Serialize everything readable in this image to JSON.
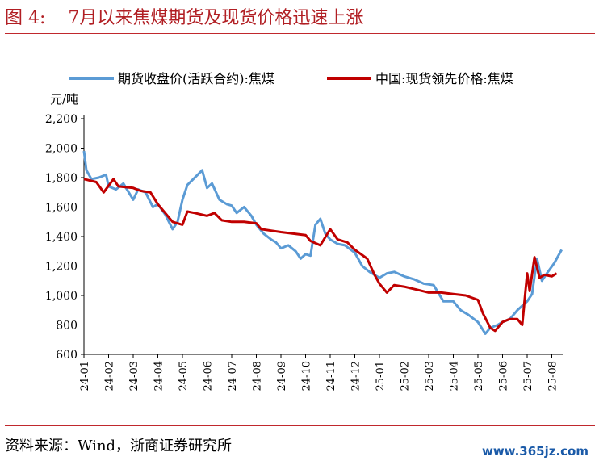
{
  "title": "图 4:    7月以来焦煤期货及现货价格迅速上涨",
  "source": "资料来源：Wind，浙商证券研究所",
  "watermark": "www.365jz.com",
  "chart_data": {
    "type": "line",
    "ylabel": "元/吨",
    "ylim": [
      600,
      2200
    ],
    "yticks": [
      "2,200",
      "2,000",
      "1,800",
      "1,600",
      "1,400",
      "1,200",
      "1,000",
      "800",
      "600"
    ],
    "ytick_values": [
      2200,
      2000,
      1800,
      1600,
      1400,
      1200,
      1000,
      800,
      600
    ],
    "categories": [
      "24-01",
      "24-02",
      "24-03",
      "24-04",
      "24-05",
      "24-06",
      "24-07",
      "24-08",
      "24-09",
      "24-10",
      "24-11",
      "24-12",
      "25-01",
      "25-02",
      "25-03",
      "25-04",
      "25-05",
      "25-06",
      "25-07",
      "25-08"
    ],
    "legend_position": "top",
    "series": [
      {
        "name": "期货收盘价(活跃合约):焦煤",
        "color": "#5b9bd5",
        "points": [
          [
            0,
            1980
          ],
          [
            0.1,
            1850
          ],
          [
            0.3,
            1790
          ],
          [
            0.6,
            1800
          ],
          [
            0.9,
            1820
          ],
          [
            1.0,
            1740
          ],
          [
            1.3,
            1720
          ],
          [
            1.6,
            1760
          ],
          [
            2.0,
            1650
          ],
          [
            2.2,
            1720
          ],
          [
            2.5,
            1700
          ],
          [
            2.8,
            1600
          ],
          [
            3.0,
            1620
          ],
          [
            3.3,
            1550
          ],
          [
            3.6,
            1450
          ],
          [
            3.8,
            1500
          ],
          [
            4.0,
            1650
          ],
          [
            4.2,
            1750
          ],
          [
            4.5,
            1800
          ],
          [
            4.8,
            1850
          ],
          [
            5.0,
            1730
          ],
          [
            5.2,
            1760
          ],
          [
            5.5,
            1650
          ],
          [
            5.8,
            1620
          ],
          [
            6.0,
            1610
          ],
          [
            6.2,
            1560
          ],
          [
            6.5,
            1600
          ],
          [
            6.8,
            1540
          ],
          [
            7.0,
            1480
          ],
          [
            7.3,
            1420
          ],
          [
            7.6,
            1380
          ],
          [
            7.8,
            1360
          ],
          [
            8.0,
            1320
          ],
          [
            8.3,
            1340
          ],
          [
            8.6,
            1300
          ],
          [
            8.8,
            1250
          ],
          [
            9.0,
            1280
          ],
          [
            9.2,
            1270
          ],
          [
            9.4,
            1480
          ],
          [
            9.6,
            1520
          ],
          [
            9.8,
            1420
          ],
          [
            10.0,
            1380
          ],
          [
            10.3,
            1350
          ],
          [
            10.6,
            1340
          ],
          [
            11.0,
            1290
          ],
          [
            11.3,
            1200
          ],
          [
            11.6,
            1160
          ],
          [
            12.0,
            1120
          ],
          [
            12.3,
            1150
          ],
          [
            12.6,
            1160
          ],
          [
            13.0,
            1130
          ],
          [
            13.4,
            1110
          ],
          [
            13.8,
            1080
          ],
          [
            14.2,
            1070
          ],
          [
            14.6,
            960
          ],
          [
            15.0,
            960
          ],
          [
            15.3,
            900
          ],
          [
            15.6,
            870
          ],
          [
            16.0,
            820
          ],
          [
            16.3,
            740
          ],
          [
            16.5,
            780
          ],
          [
            16.8,
            800
          ],
          [
            17.0,
            820
          ],
          [
            17.3,
            840
          ],
          [
            17.6,
            900
          ],
          [
            18.0,
            960
          ],
          [
            18.2,
            1010
          ],
          [
            18.4,
            1250
          ],
          [
            18.6,
            1100
          ],
          [
            18.8,
            1150
          ],
          [
            19.1,
            1220
          ],
          [
            19.4,
            1310
          ]
        ]
      },
      {
        "name": "中国:现货领先价格:焦煤",
        "color": "#c00000",
        "points": [
          [
            0,
            1790
          ],
          [
            0.5,
            1770
          ],
          [
            0.8,
            1700
          ],
          [
            1.2,
            1790
          ],
          [
            1.4,
            1740
          ],
          [
            2.0,
            1730
          ],
          [
            2.3,
            1710
          ],
          [
            2.7,
            1700
          ],
          [
            3.0,
            1620
          ],
          [
            3.3,
            1560
          ],
          [
            3.6,
            1500
          ],
          [
            4.0,
            1480
          ],
          [
            4.2,
            1570
          ],
          [
            4.5,
            1560
          ],
          [
            5.0,
            1540
          ],
          [
            5.3,
            1560
          ],
          [
            5.6,
            1510
          ],
          [
            6.0,
            1500
          ],
          [
            6.5,
            1500
          ],
          [
            7.0,
            1490
          ],
          [
            7.2,
            1450
          ],
          [
            7.6,
            1440
          ],
          [
            8.0,
            1430
          ],
          [
            8.5,
            1420
          ],
          [
            9.0,
            1410
          ],
          [
            9.2,
            1370
          ],
          [
            9.6,
            1340
          ],
          [
            10.0,
            1450
          ],
          [
            10.3,
            1380
          ],
          [
            10.7,
            1360
          ],
          [
            11.0,
            1310
          ],
          [
            11.5,
            1250
          ],
          [
            11.8,
            1140
          ],
          [
            12.0,
            1080
          ],
          [
            12.3,
            1020
          ],
          [
            12.6,
            1070
          ],
          [
            13.0,
            1060
          ],
          [
            13.5,
            1040
          ],
          [
            14.0,
            1020
          ],
          [
            14.5,
            1020
          ],
          [
            15.0,
            1010
          ],
          [
            15.5,
            1000
          ],
          [
            16.0,
            970
          ],
          [
            16.2,
            880
          ],
          [
            16.5,
            780
          ],
          [
            16.7,
            760
          ],
          [
            17.0,
            820
          ],
          [
            17.3,
            840
          ],
          [
            17.6,
            840
          ],
          [
            17.8,
            800
          ],
          [
            18.0,
            1150
          ],
          [
            18.1,
            1030
          ],
          [
            18.3,
            1260
          ],
          [
            18.5,
            1120
          ],
          [
            18.7,
            1140
          ],
          [
            19.0,
            1130
          ],
          [
            19.2,
            1150
          ]
        ]
      }
    ]
  }
}
